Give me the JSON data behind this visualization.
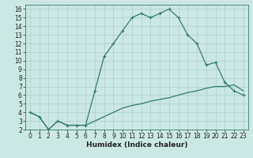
{
  "title": "",
  "xlabel": "Humidex (Indice chaleur)",
  "ylabel": "",
  "background_color": "#cce8e4",
  "line_color": "#2e7d6e",
  "grid_color": "#aacfcb",
  "x_line1": [
    0,
    1,
    2,
    3,
    4,
    5,
    6,
    7,
    8,
    9,
    10,
    11,
    12,
    13,
    14,
    15,
    16,
    17,
    18,
    19,
    20,
    21,
    22,
    23
  ],
  "y_line1": [
    4,
    3.5,
    2,
    3,
    2.5,
    2.5,
    2.5,
    6.5,
    10.5,
    12,
    13.5,
    15,
    15.5,
    15,
    15.5,
    16,
    15,
    13,
    12,
    9.5,
    9.8,
    7.5,
    6.5,
    6
  ],
  "x_line2": [
    0,
    1,
    2,
    3,
    4,
    5,
    6,
    7,
    8,
    9,
    10,
    11,
    12,
    13,
    14,
    15,
    16,
    17,
    18,
    19,
    20,
    21,
    22,
    23
  ],
  "y_line2": [
    4,
    3.5,
    2,
    3,
    2.5,
    2.5,
    2.5,
    3,
    3.5,
    4,
    4.5,
    4.8,
    5,
    5.3,
    5.5,
    5.7,
    6,
    6.3,
    6.5,
    6.8,
    7,
    7,
    7.2,
    6.5
  ],
  "xlim": [
    -0.5,
    23.5
  ],
  "ylim": [
    2,
    16.5
  ],
  "yticks": [
    2,
    3,
    4,
    5,
    6,
    7,
    8,
    9,
    10,
    11,
    12,
    13,
    14,
    15,
    16
  ],
  "xticks": [
    0,
    1,
    2,
    3,
    4,
    5,
    6,
    7,
    8,
    9,
    10,
    11,
    12,
    13,
    14,
    15,
    16,
    17,
    18,
    19,
    20,
    21,
    22,
    23
  ],
  "xlabel_fontsize": 6.5,
  "tick_fontsize": 5.5,
  "linewidth": 0.9,
  "marker_size": 3.5
}
